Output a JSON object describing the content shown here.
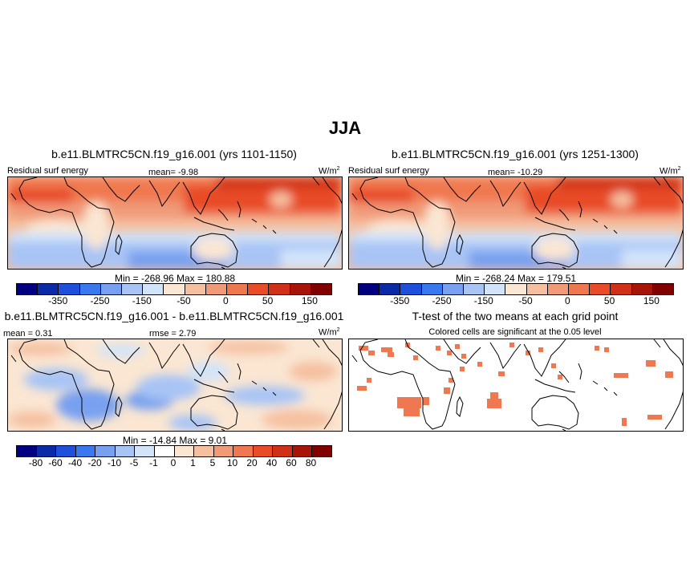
{
  "figure_title": "JJA",
  "panels": {
    "p1": {
      "title": "b.e11.BLMTRC5CN.f19_g16.001 (yrs 1101-1150)",
      "left_label": "Residual surf energy",
      "center_label": "mean=  -9.98",
      "units": "W/m",
      "units_sup": "2",
      "minmax": "Min = -268.96 Max = 180.88"
    },
    "p2": {
      "title": "b.e11.BLMTRC5CN.f19_g16.001 (yrs 1251-1300)",
      "left_label": "Residual surf energy",
      "center_label": "mean=  -10.29",
      "units": "W/m",
      "units_sup": "2",
      "minmax": "Min = -268.24 Max = 179.51"
    },
    "p3": {
      "title": "b.e11.BLMTRC5CN.f19_g16.001 - b.e11.BLMTRC5CN.f19_g16.001",
      "left_label": "mean =   0.31",
      "center_label": "rmse =   2.79",
      "units": "W/m",
      "units_sup": "2",
      "minmax": "Min = -14.84 Max =   9.01"
    },
    "p4": {
      "title": "T-test of the two means at each grid point",
      "subtitle": "Colored cells are significant at the 0.05 level"
    }
  },
  "colorbars": {
    "abs": {
      "colors": [
        "#000080",
        "#0a2aa8",
        "#1e50dc",
        "#3a78f0",
        "#78a0f0",
        "#a8c4f5",
        "#d2e4fa",
        "#fae6d2",
        "#f5c0a0",
        "#f09a78",
        "#f07850",
        "#e84c28",
        "#d03018",
        "#a81408",
        "#800000"
      ],
      "labels": [
        "-350",
        "-250",
        "-150",
        "-50",
        "0",
        "50",
        "150"
      ]
    },
    "diff": {
      "colors": [
        "#000080",
        "#0a2aa8",
        "#1e50dc",
        "#3a78f0",
        "#78a0f0",
        "#a8c4f5",
        "#d2e4fa",
        "#ffffff",
        "#fae6d2",
        "#f5c0a0",
        "#f09a78",
        "#f07850",
        "#e84c28",
        "#d03018",
        "#a81408",
        "#800000"
      ],
      "labels": [
        "-80",
        "-60",
        "-40",
        "-20",
        "-10",
        "-5",
        "-1",
        "0",
        "1",
        "5",
        "10",
        "20",
        "40",
        "60",
        "80"
      ]
    }
  },
  "chart_data": [
    {
      "type": "heatmap",
      "title": "b.e11.BLMTRC5CN.f19_g16.001 (yrs 1101-1150)",
      "variable": "Residual surf energy",
      "units": "W/m2",
      "mean": -9.98,
      "min": -268.96,
      "max": 180.88,
      "colorbar_ticks": [
        -350,
        -250,
        -150,
        -50,
        0,
        50,
        150
      ],
      "pattern": "strongly positive (50 to 180) over the northern hemisphere oceans and land, negative (-50 to -150) over the southern hemisphere"
    },
    {
      "type": "heatmap",
      "title": "b.e11.BLMTRC5CN.f19_g16.001 (yrs 1251-1300)",
      "variable": "Residual surf energy",
      "units": "W/m2",
      "mean": -10.29,
      "min": -268.24,
      "max": 179.51,
      "colorbar_ticks": [
        -350,
        -250,
        -150,
        -50,
        0,
        50,
        150
      ]
    },
    {
      "type": "heatmap",
      "title": "b.e11.BLMTRC5CN.f19_g16.001 - b.e11.BLMTRC5CN.f19_g16.001",
      "units": "W/m2",
      "mean": 0.31,
      "rmse": 2.79,
      "min": -14.84,
      "max": 9.01,
      "colorbar_ticks": [
        -80,
        -60,
        -40,
        -20,
        -10,
        -5,
        -1,
        0,
        1,
        5,
        10,
        20,
        40,
        60,
        80
      ]
    },
    {
      "type": "heatmap",
      "title": "T-test of the two means at each grid point",
      "subtitle": "Colored cells are significant at the 0.05 level",
      "significance_level": 0.05
    }
  ]
}
